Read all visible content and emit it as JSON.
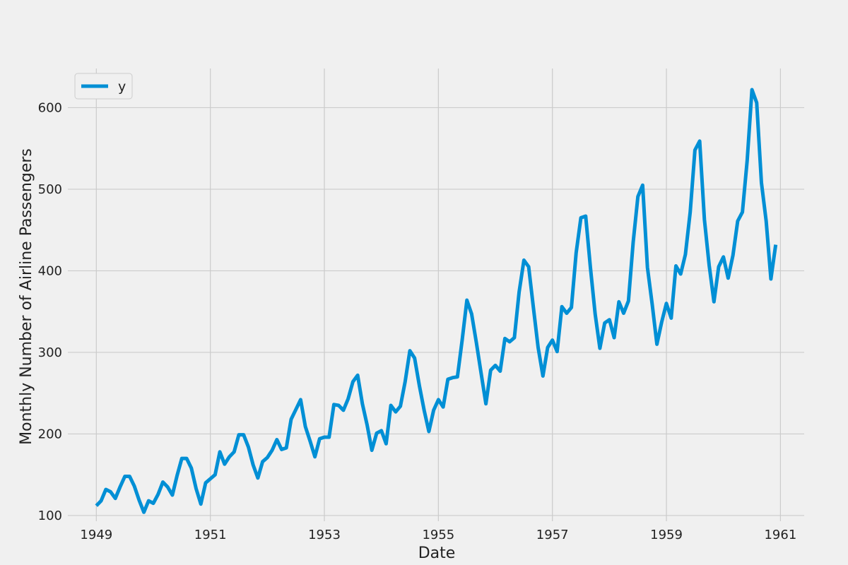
{
  "chart_data": {
    "type": "line",
    "title": "",
    "xlabel": "Date",
    "ylabel": "Monthly Number of Airline Passengers",
    "x_start": "1949-01",
    "x_end": "1960-12",
    "xlim": [
      "1948-07",
      "1961-06"
    ],
    "ylim": [
      93,
      648
    ],
    "x_ticks": [
      "1949",
      "1951",
      "1953",
      "1955",
      "1957",
      "1959",
      "1961"
    ],
    "y_ticks": [
      100,
      200,
      300,
      400,
      500,
      600
    ],
    "grid": true,
    "legend_placement": "top-left",
    "series": [
      {
        "name": "y",
        "color": "#008fd5",
        "values": [
          112,
          118,
          132,
          129,
          121,
          135,
          148,
          148,
          136,
          119,
          104,
          118,
          115,
          126,
          141,
          135,
          125,
          149,
          170,
          170,
          158,
          133,
          114,
          140,
          145,
          150,
          178,
          163,
          172,
          178,
          199,
          199,
          184,
          162,
          146,
          166,
          171,
          180,
          193,
          181,
          183,
          218,
          230,
          242,
          209,
          191,
          172,
          194,
          196,
          196,
          236,
          235,
          229,
          243,
          264,
          272,
          237,
          211,
          180,
          201,
          204,
          188,
          235,
          227,
          234,
          264,
          302,
          293,
          259,
          229,
          203,
          229,
          242,
          233,
          267,
          269,
          270,
          315,
          364,
          347,
          312,
          274,
          237,
          278,
          284,
          277,
          317,
          313,
          318,
          374,
          413,
          405,
          355,
          306,
          271,
          306,
          315,
          301,
          356,
          348,
          355,
          422,
          465,
          467,
          404,
          347,
          305,
          336,
          340,
          318,
          362,
          348,
          363,
          435,
          491,
          505,
          404,
          359,
          310,
          337,
          360,
          342,
          406,
          396,
          420,
          472,
          548,
          559,
          463,
          407,
          362,
          405,
          417,
          391,
          419,
          461,
          472,
          535,
          622,
          606,
          508,
          461,
          390,
          432
        ]
      }
    ]
  }
}
